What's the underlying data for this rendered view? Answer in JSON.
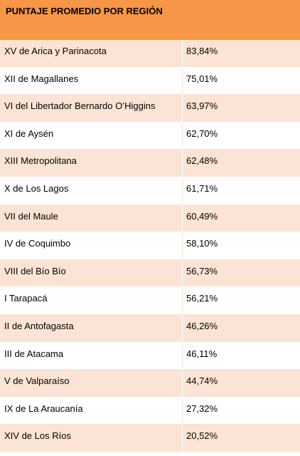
{
  "table": {
    "header": "PUNTAJE PROMEDIO POR REGIÓN",
    "rows": [
      {
        "region": "XV de Arica y Parinacota",
        "value": "83,84%"
      },
      {
        "region": "XII de Magallanes",
        "value": "75,01%"
      },
      {
        "region": "VI del Libertador Bernardo O’Higgins",
        "value": "63,97%"
      },
      {
        "region": "XI de Aysén",
        "value": "62,70%"
      },
      {
        "region": "XIII Metropolitana",
        "value": "62,48%"
      },
      {
        "region": "X de Los Lagos",
        "value": "61,71%"
      },
      {
        "region": "VII del Maule",
        "value": "60,49%"
      },
      {
        "region": "IV de Coquimbo",
        "value": "58,10%"
      },
      {
        "region": "VIII del Bío Bío",
        "value": "56,73%"
      },
      {
        "region": "I Tarapacá",
        "value": "56,21%"
      },
      {
        "region": "II de Antofagasta",
        "value": "46,26%"
      },
      {
        "region": "III de Atacama",
        "value": "46,11%"
      },
      {
        "region": "V de Valparaíso",
        "value": "44,74%"
      },
      {
        "region": "IX de La Araucanía",
        "value": "27,32%"
      },
      {
        "region": "XIV de Los Ríos",
        "value": "20,52%"
      }
    ]
  },
  "colors": {
    "header_bg": "#f79646",
    "row_shade": "#fbe4d5",
    "row_plain": "#ffffff"
  }
}
